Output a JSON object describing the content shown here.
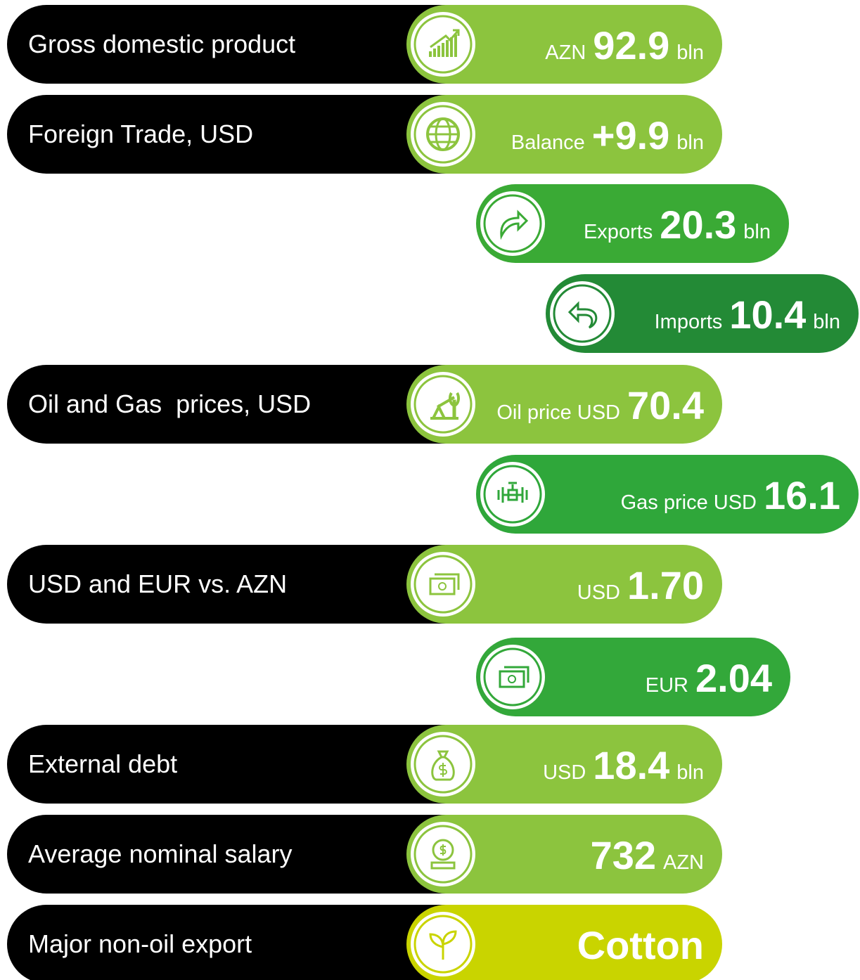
{
  "rows": [
    {
      "label": "Gross domestic product",
      "pills": [
        {
          "prefix": "AZN",
          "value": "92.9",
          "suffix": "bln"
        }
      ]
    },
    {
      "label": "Foreign Trade, USD",
      "pills": [
        {
          "prefix": "Balance",
          "value": "+9.9",
          "suffix": "bln"
        },
        {
          "prefix": "Exports",
          "value": "20.3",
          "suffix": "bln"
        },
        {
          "prefix": "Imports",
          "value": "10.4",
          "suffix": "bln"
        }
      ]
    },
    {
      "label": "Oil and Gas  prices, USD",
      "pills": [
        {
          "prefix": "Oil price USD",
          "value": "70.4"
        },
        {
          "prefix": "Gas price USD",
          "value": "16.1"
        }
      ]
    },
    {
      "label": "USD and EUR vs. AZN",
      "pills": [
        {
          "prefix": "USD",
          "value": "1.70"
        },
        {
          "prefix": "EUR",
          "value": "2.04"
        }
      ]
    },
    {
      "label": "External debt",
      "pills": [
        {
          "prefix": "USD",
          "value": "18.4",
          "suffix": "bln"
        }
      ]
    },
    {
      "label": "Average nominal salary",
      "pills": [
        {
          "value": "732",
          "suffix": "AZN"
        }
      ]
    },
    {
      "label": "Major non-oil export",
      "pills": [
        {
          "value": "Cotton"
        }
      ]
    }
  ]
}
